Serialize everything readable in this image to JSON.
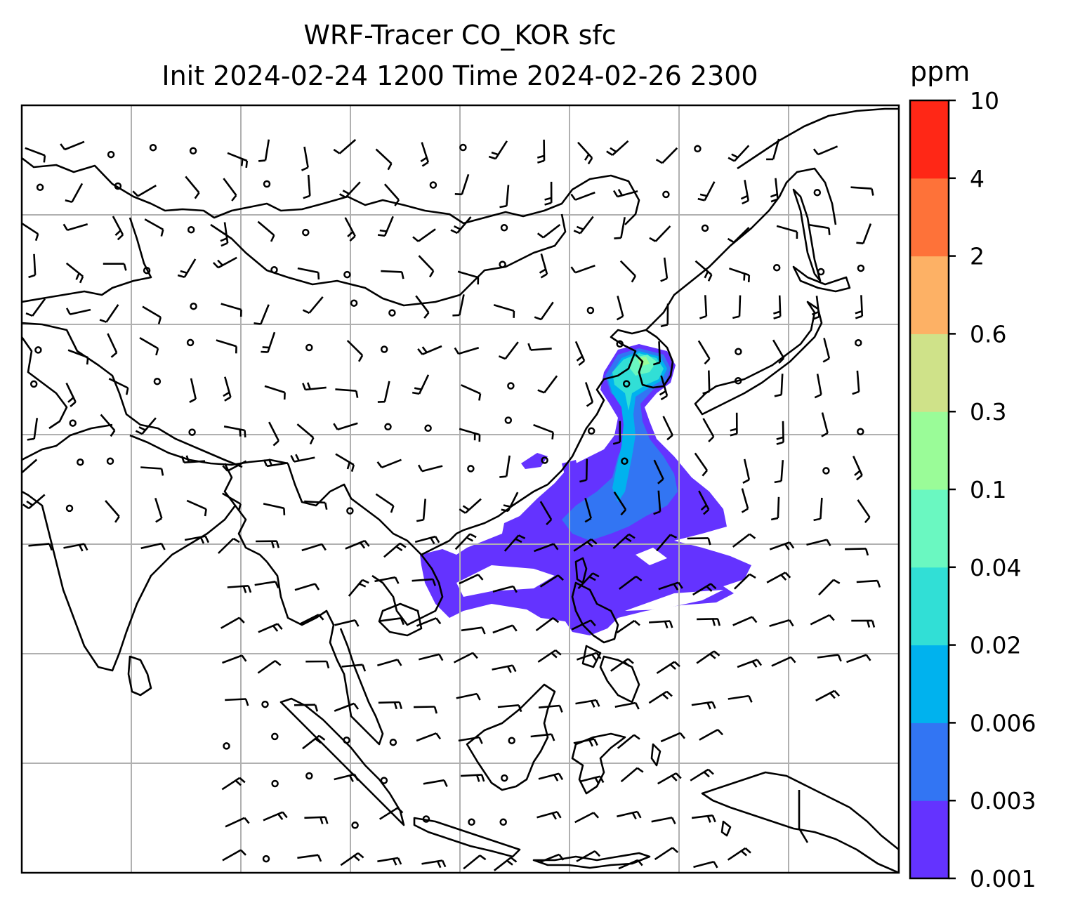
{
  "title": {
    "line1": "WRF-Tracer CO_KOR sfc",
    "line2": "Init 2024-02-24 1200 Time 2024-02-26 2300"
  },
  "colorbar": {
    "unit": "ppm",
    "ticks": [
      "0.001",
      "0.003",
      "0.006",
      "0.02",
      "0.04",
      "0.1",
      "0.3",
      "0.6",
      "2",
      "4",
      "10"
    ],
    "colors": [
      "#6433ff",
      "#3275f3",
      "#00b2ee",
      "#31dfd6",
      "#6af8c1",
      "#9afc98",
      "#cfe289",
      "#fdb165",
      "#fe7239",
      "#ff2716"
    ]
  },
  "map": {
    "gridlines": true,
    "features": [
      "coastlines",
      "country-borders",
      "wind-barbs",
      "calm-wind-circles",
      "CO-tracer-plume"
    ],
    "plume_levels": [
      "0.001",
      "0.003",
      "0.006",
      "0.02",
      "0.04",
      "0.1"
    ]
  }
}
